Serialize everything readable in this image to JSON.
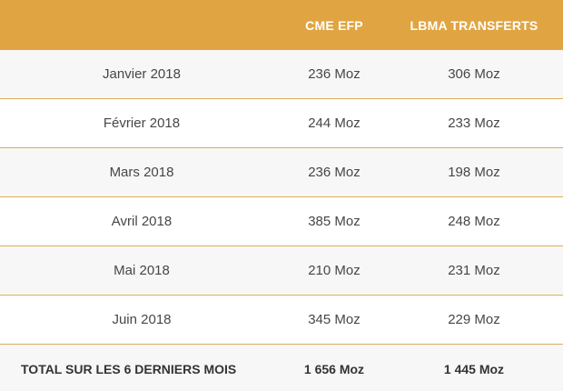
{
  "header": {
    "col1": "",
    "col2": "CME EFP",
    "col3": "LBMA TRANSFERTS"
  },
  "rows": [
    {
      "month": "Janvier 2018",
      "cme": "236 Moz",
      "lbma": "306 Moz"
    },
    {
      "month": "Février 2018",
      "cme": "244 Moz",
      "lbma": "233 Moz"
    },
    {
      "month": "Mars 2018",
      "cme": "236 Moz",
      "lbma": "198 Moz"
    },
    {
      "month": "Avril 2018",
      "cme": "385 Moz",
      "lbma": "248 Moz"
    },
    {
      "month": "Mai 2018",
      "cme": "210 Moz",
      "lbma": "231 Moz"
    },
    {
      "month": "Juin 2018",
      "cme": "345 Moz",
      "lbma": "229 Moz"
    }
  ],
  "total": {
    "label": "TOTAL SUR LES 6 DERNIERS MOIS",
    "cme": "1 656 Moz",
    "lbma": "1 445 Moz"
  },
  "colors": {
    "header_bg": "#e0a542",
    "row_divider": "#dcae5a",
    "row_alt_bg": "#f7f7f7"
  }
}
